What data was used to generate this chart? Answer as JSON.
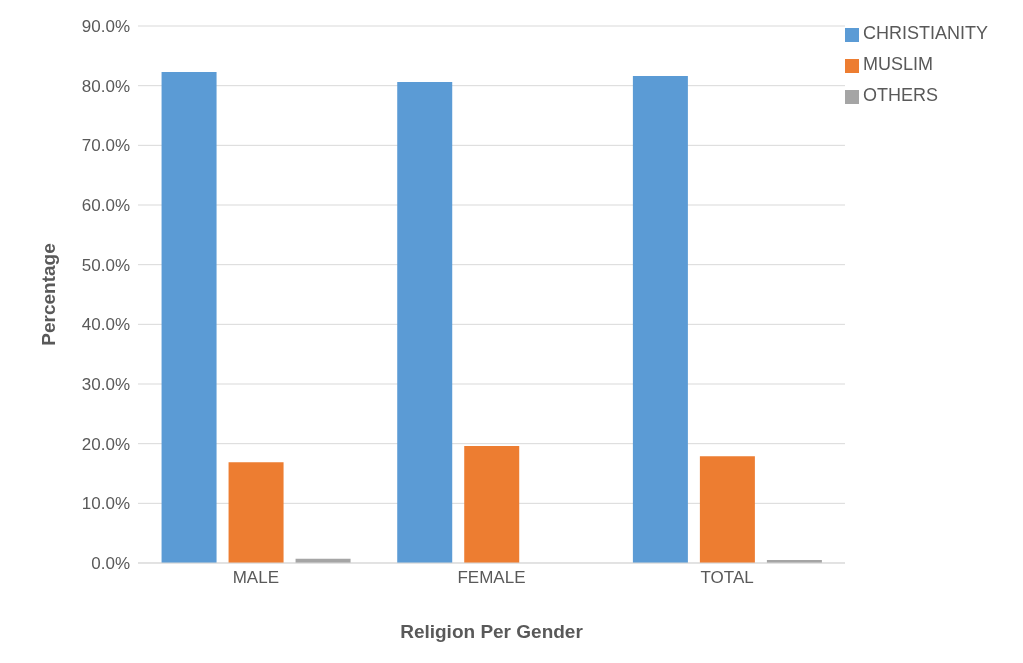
{
  "chart_data": {
    "type": "bar",
    "xlabel": "Religion Per Gender",
    "ylabel": "Percentage",
    "categories": [
      "MALE",
      "FEMALE",
      "TOTAL"
    ],
    "series": [
      {
        "name": "CHRISTIANITY",
        "color": "#5b9bd5",
        "values": [
          82.3,
          80.6,
          81.6
        ]
      },
      {
        "name": "MUSLIM",
        "color": "#ed7d31",
        "values": [
          16.9,
          19.6,
          17.9
        ]
      },
      {
        "name": "OTHERS",
        "color": "#a5a5a5",
        "values": [
          0.7,
          0,
          0.5
        ]
      }
    ],
    "ylim": [
      0,
      90
    ],
    "yticks": [
      {
        "value": 0,
        "label": "0.0%"
      },
      {
        "value": 10,
        "label": "10.0%"
      },
      {
        "value": 20,
        "label": "20.0%"
      },
      {
        "value": 30,
        "label": "30.0%"
      },
      {
        "value": 40,
        "label": "40.0%"
      },
      {
        "value": 50,
        "label": "50.0%"
      },
      {
        "value": 60,
        "label": "60.0%"
      },
      {
        "value": 70,
        "label": "70.0%"
      },
      {
        "value": 80,
        "label": "80.0%"
      },
      {
        "value": 90,
        "label": "90.0%"
      }
    ],
    "grid": "y",
    "legend": "top right"
  }
}
